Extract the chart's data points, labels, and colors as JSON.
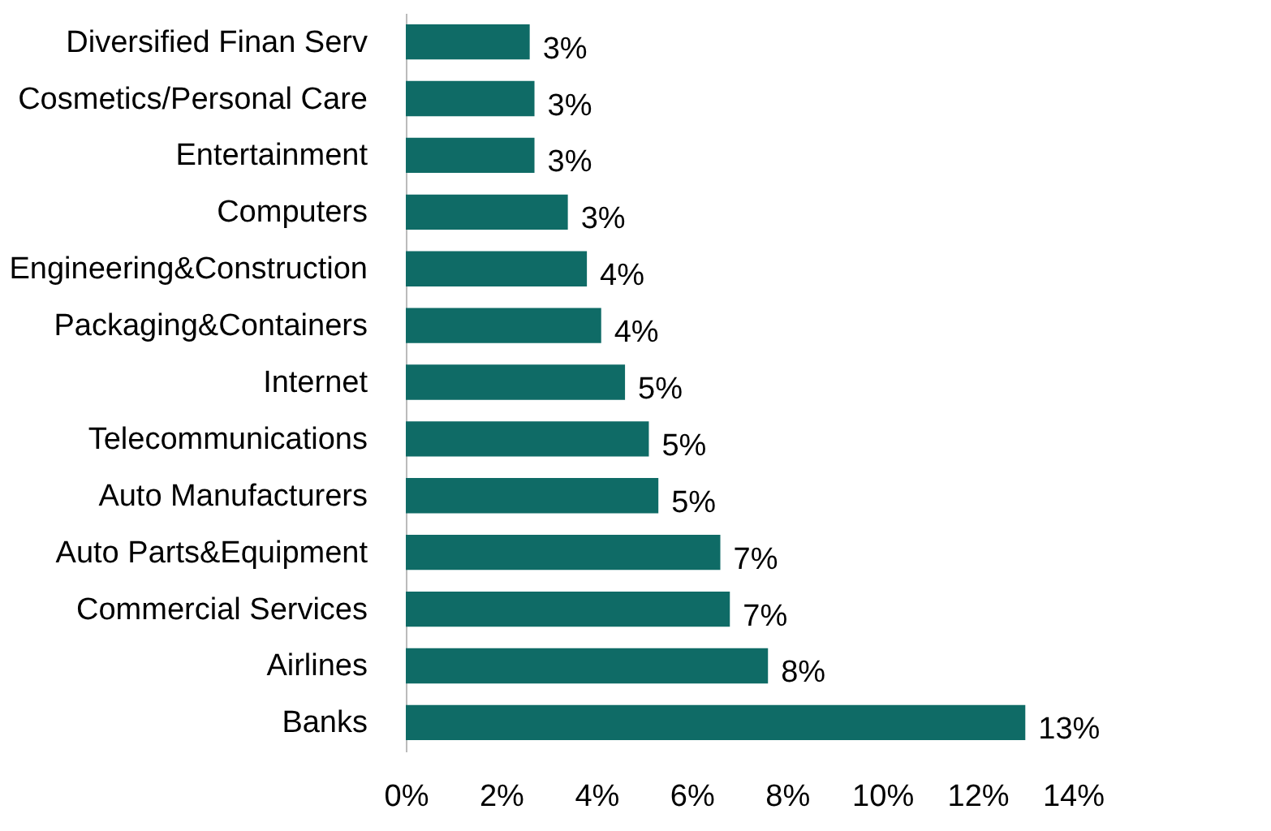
{
  "chart_data": {
    "type": "bar",
    "orientation": "horizontal",
    "categories": [
      "Diversified Finan Serv",
      "Cosmetics/Personal Care",
      "Entertainment",
      "Computers",
      "Engineering&Construction",
      "Packaging&Containers",
      "Internet",
      "Telecommunications",
      "Auto Manufacturers",
      "Auto Parts&Equipment",
      "Commercial Services",
      "Airlines",
      "Banks"
    ],
    "values": [
      2.6,
      2.7,
      2.7,
      3.4,
      3.8,
      4.1,
      4.6,
      5.1,
      5.3,
      6.6,
      6.8,
      7.6,
      13.0
    ],
    "value_labels": [
      "3%",
      "3%",
      "3%",
      "3%",
      "4%",
      "4%",
      "5%",
      "5%",
      "5%",
      "7%",
      "7%",
      "8%",
      "13%"
    ],
    "color": "#0f6b66",
    "xlim": [
      0,
      14
    ],
    "xticks": [
      {
        "value": 0,
        "label": "0%"
      },
      {
        "value": 2,
        "label": "2%"
      },
      {
        "value": 4,
        "label": "4%"
      },
      {
        "value": 6,
        "label": "6%"
      },
      {
        "value": 8,
        "label": "8%"
      },
      {
        "value": 10,
        "label": "10%"
      },
      {
        "value": 12,
        "label": "12%"
      },
      {
        "value": 14,
        "label": "14%"
      }
    ],
    "grid": false
  }
}
